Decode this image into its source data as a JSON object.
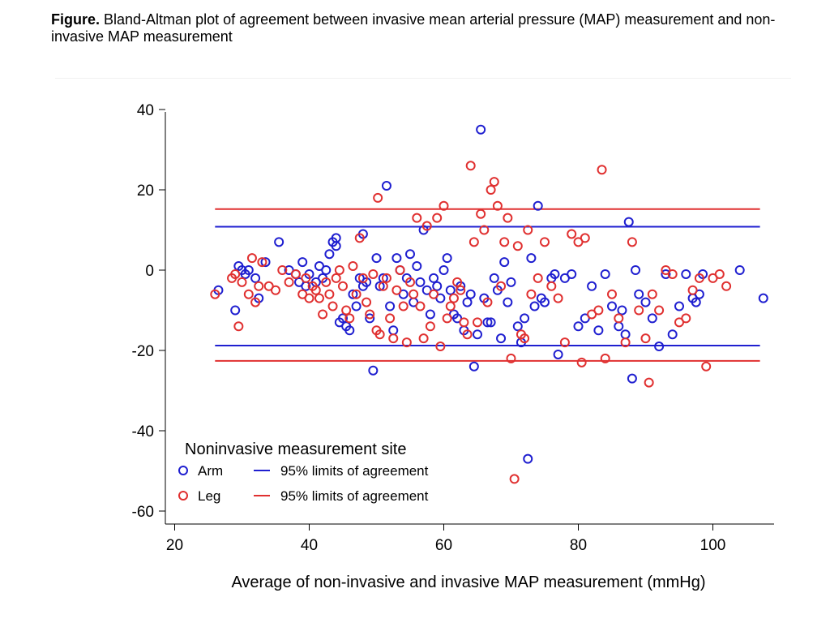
{
  "caption": {
    "label": "Figure.",
    "text": " Bland-Altman plot of agreement between invasive mean arterial pressure (MAP) measurement and non-invasive MAP measurement"
  },
  "chart_data": {
    "type": "scatter",
    "xlabel": "Average of non-invasive and invasive MAP measurement (mmHg)",
    "ylabel": "",
    "xlim": [
      20,
      110
    ],
    "ylim": [
      -60,
      40
    ],
    "xticks": [
      20,
      40,
      60,
      80,
      100
    ],
    "yticks": [
      40,
      20,
      0,
      -20,
      -40,
      -60
    ],
    "grid": false,
    "legend": {
      "title": "Noninvasive measurement site",
      "placement": "bottom-left",
      "entries": [
        {
          "label": "Arm",
          "kind": "marker",
          "color": "#1f1fd0"
        },
        {
          "label": "95% limits of agreement",
          "kind": "line",
          "color": "#1f1fd0"
        },
        {
          "label": "Leg",
          "kind": "marker",
          "color": "#e03030"
        },
        {
          "label": "95% limits of agreement",
          "kind": "line",
          "color": "#e03030"
        }
      ]
    },
    "limits": [
      {
        "series": "Arm",
        "upper": 10.8,
        "lower": -18.8,
        "x_range": [
          26,
          107
        ],
        "color": "#1f1fd0"
      },
      {
        "series": "Leg",
        "upper": 15.2,
        "lower": -22.6,
        "x_range": [
          26,
          107
        ],
        "color": "#e03030"
      }
    ],
    "series": [
      {
        "name": "Arm",
        "color": "#1f1fd0",
        "points": [
          [
            26.5,
            -5
          ],
          [
            29,
            -10
          ],
          [
            29.5,
            1
          ],
          [
            30,
            0
          ],
          [
            30.5,
            -1
          ],
          [
            31,
            0
          ],
          [
            32,
            -2
          ],
          [
            32.5,
            -7
          ],
          [
            33.5,
            2
          ],
          [
            35.5,
            7
          ],
          [
            37,
            0
          ],
          [
            38,
            -1
          ],
          [
            38.5,
            -3
          ],
          [
            39,
            2
          ],
          [
            39.5,
            -4
          ],
          [
            40,
            -1
          ],
          [
            41,
            -3
          ],
          [
            41.5,
            1
          ],
          [
            42,
            -2
          ],
          [
            42.5,
            0
          ],
          [
            43,
            4
          ],
          [
            43.5,
            7
          ],
          [
            44,
            8
          ],
          [
            44,
            6
          ],
          [
            44.5,
            -13
          ],
          [
            45,
            -12
          ],
          [
            45.5,
            -14
          ],
          [
            46,
            -15
          ],
          [
            46.5,
            -6
          ],
          [
            47,
            -9
          ],
          [
            47.5,
            -2
          ],
          [
            48,
            -4
          ],
          [
            48,
            9
          ],
          [
            48.5,
            -3
          ],
          [
            49,
            -12
          ],
          [
            49.5,
            -25
          ],
          [
            50,
            3
          ],
          [
            50.5,
            -4
          ],
          [
            51,
            -2
          ],
          [
            51.5,
            21
          ],
          [
            52,
            -9
          ],
          [
            52.5,
            -15
          ],
          [
            53,
            3
          ],
          [
            53.5,
            0
          ],
          [
            54,
            -6
          ],
          [
            54.5,
            -2
          ],
          [
            55,
            4
          ],
          [
            55.5,
            -8
          ],
          [
            56,
            1
          ],
          [
            56.5,
            -3
          ],
          [
            57,
            10
          ],
          [
            57.5,
            -5
          ],
          [
            58,
            -11
          ],
          [
            58.5,
            -2
          ],
          [
            59,
            -4
          ],
          [
            59.5,
            -7
          ],
          [
            60,
            0
          ],
          [
            60.5,
            3
          ],
          [
            61,
            -5
          ],
          [
            61.5,
            -11
          ],
          [
            62,
            -12
          ],
          [
            62.5,
            -4
          ],
          [
            63,
            -15
          ],
          [
            63.5,
            -8
          ],
          [
            64,
            -6
          ],
          [
            64.5,
            -24
          ],
          [
            65,
            -16
          ],
          [
            65.5,
            35
          ],
          [
            66,
            -7
          ],
          [
            66.5,
            -13
          ],
          [
            67,
            -13
          ],
          [
            67.5,
            -2
          ],
          [
            68,
            -5
          ],
          [
            68.5,
            -17
          ],
          [
            69,
            2
          ],
          [
            69.5,
            -8
          ],
          [
            70,
            -3
          ],
          [
            71,
            -14
          ],
          [
            71.5,
            -18
          ],
          [
            72,
            -12
          ],
          [
            72.5,
            -47
          ],
          [
            73,
            3
          ],
          [
            73.5,
            -9
          ],
          [
            74,
            16
          ],
          [
            74.5,
            -7
          ],
          [
            75,
            -8
          ],
          [
            76,
            -2
          ],
          [
            76.5,
            -1
          ],
          [
            77,
            -21
          ],
          [
            78,
            -2
          ],
          [
            79,
            -1
          ],
          [
            80,
            -14
          ],
          [
            81,
            -12
          ],
          [
            82,
            -4
          ],
          [
            83,
            -15
          ],
          [
            84,
            -1
          ],
          [
            85,
            -9
          ],
          [
            86,
            -14
          ],
          [
            86.5,
            -10
          ],
          [
            87,
            -16
          ],
          [
            87.5,
            12
          ],
          [
            88,
            -27
          ],
          [
            88.5,
            0
          ],
          [
            89,
            -6
          ],
          [
            90,
            -8
          ],
          [
            91,
            -12
          ],
          [
            92,
            -19
          ],
          [
            93,
            -1
          ],
          [
            94,
            -16
          ],
          [
            95,
            -9
          ],
          [
            96,
            -1
          ],
          [
            97,
            -7
          ],
          [
            97.5,
            -8
          ],
          [
            98,
            -6
          ],
          [
            98.5,
            -1
          ],
          [
            104,
            0
          ],
          [
            107.5,
            -7
          ]
        ]
      },
      {
        "name": "Leg",
        "color": "#e03030",
        "points": [
          [
            26,
            -6
          ],
          [
            28.5,
            -2
          ],
          [
            29,
            -1
          ],
          [
            29.5,
            -14
          ],
          [
            30,
            -3
          ],
          [
            31,
            -6
          ],
          [
            31.5,
            3
          ],
          [
            32,
            -8
          ],
          [
            32.5,
            -4
          ],
          [
            33,
            2
          ],
          [
            34,
            -4
          ],
          [
            35,
            -5
          ],
          [
            36,
            0
          ],
          [
            37,
            -3
          ],
          [
            38,
            -1
          ],
          [
            39,
            -6
          ],
          [
            39.5,
            -2
          ],
          [
            40,
            -7
          ],
          [
            40.5,
            -4
          ],
          [
            41,
            -5
          ],
          [
            41.5,
            -7
          ],
          [
            42,
            -11
          ],
          [
            42.5,
            -3
          ],
          [
            43,
            -6
          ],
          [
            43.5,
            -9
          ],
          [
            44,
            -2
          ],
          [
            44.5,
            0
          ],
          [
            45,
            -4
          ],
          [
            45.5,
            -10
          ],
          [
            46,
            -12
          ],
          [
            46.5,
            1
          ],
          [
            47,
            -6
          ],
          [
            47.5,
            8
          ],
          [
            48,
            -2
          ],
          [
            48.5,
            -8
          ],
          [
            49,
            -11
          ],
          [
            49.5,
            -1
          ],
          [
            50,
            -15
          ],
          [
            50.2,
            18
          ],
          [
            50.5,
            -16
          ],
          [
            51,
            -4
          ],
          [
            51.5,
            -2
          ],
          [
            52,
            -12
          ],
          [
            52.5,
            -17
          ],
          [
            53,
            -5
          ],
          [
            53.5,
            0
          ],
          [
            54,
            -9
          ],
          [
            54.5,
            -18
          ],
          [
            55,
            -3
          ],
          [
            55.5,
            -6
          ],
          [
            56,
            13
          ],
          [
            56.5,
            -9
          ],
          [
            57,
            -17
          ],
          [
            57.5,
            11
          ],
          [
            58,
            -14
          ],
          [
            58.5,
            -6
          ],
          [
            59,
            13
          ],
          [
            59.5,
            -19
          ],
          [
            60,
            16
          ],
          [
            60.5,
            -12
          ],
          [
            61,
            -9
          ],
          [
            61.5,
            -7
          ],
          [
            62,
            -3
          ],
          [
            62.5,
            -5
          ],
          [
            63,
            -13
          ],
          [
            63.5,
            -16
          ],
          [
            64,
            26
          ],
          [
            64.5,
            7
          ],
          [
            65,
            -13
          ],
          [
            65.5,
            14
          ],
          [
            66,
            10
          ],
          [
            66.5,
            -8
          ],
          [
            67,
            20
          ],
          [
            67.5,
            22
          ],
          [
            68,
            16
          ],
          [
            68.5,
            -4
          ],
          [
            69,
            7
          ],
          [
            69.5,
            13
          ],
          [
            70,
            -22
          ],
          [
            70.5,
            -52
          ],
          [
            71,
            6
          ],
          [
            71.5,
            -16
          ],
          [
            72,
            -17
          ],
          [
            72.5,
            10
          ],
          [
            73,
            -6
          ],
          [
            74,
            -2
          ],
          [
            75,
            7
          ],
          [
            76,
            -4
          ],
          [
            77,
            -7
          ],
          [
            78,
            -18
          ],
          [
            79,
            9
          ],
          [
            80,
            7
          ],
          [
            80.5,
            -23
          ],
          [
            81,
            8
          ],
          [
            82,
            -11
          ],
          [
            83,
            -10
          ],
          [
            83.5,
            25
          ],
          [
            84,
            -22
          ],
          [
            85,
            -6
          ],
          [
            86,
            -12
          ],
          [
            87,
            -18
          ],
          [
            88,
            7
          ],
          [
            89,
            -10
          ],
          [
            90,
            -17
          ],
          [
            90.5,
            -28
          ],
          [
            91,
            -6
          ],
          [
            92,
            -10
          ],
          [
            93,
            0
          ],
          [
            94,
            -1
          ],
          [
            95,
            -13
          ],
          [
            96,
            -12
          ],
          [
            97,
            -5
          ],
          [
            98,
            -2
          ],
          [
            99,
            -24
          ],
          [
            100,
            -2
          ],
          [
            101,
            -1
          ],
          [
            102,
            -4
          ]
        ]
      }
    ]
  }
}
